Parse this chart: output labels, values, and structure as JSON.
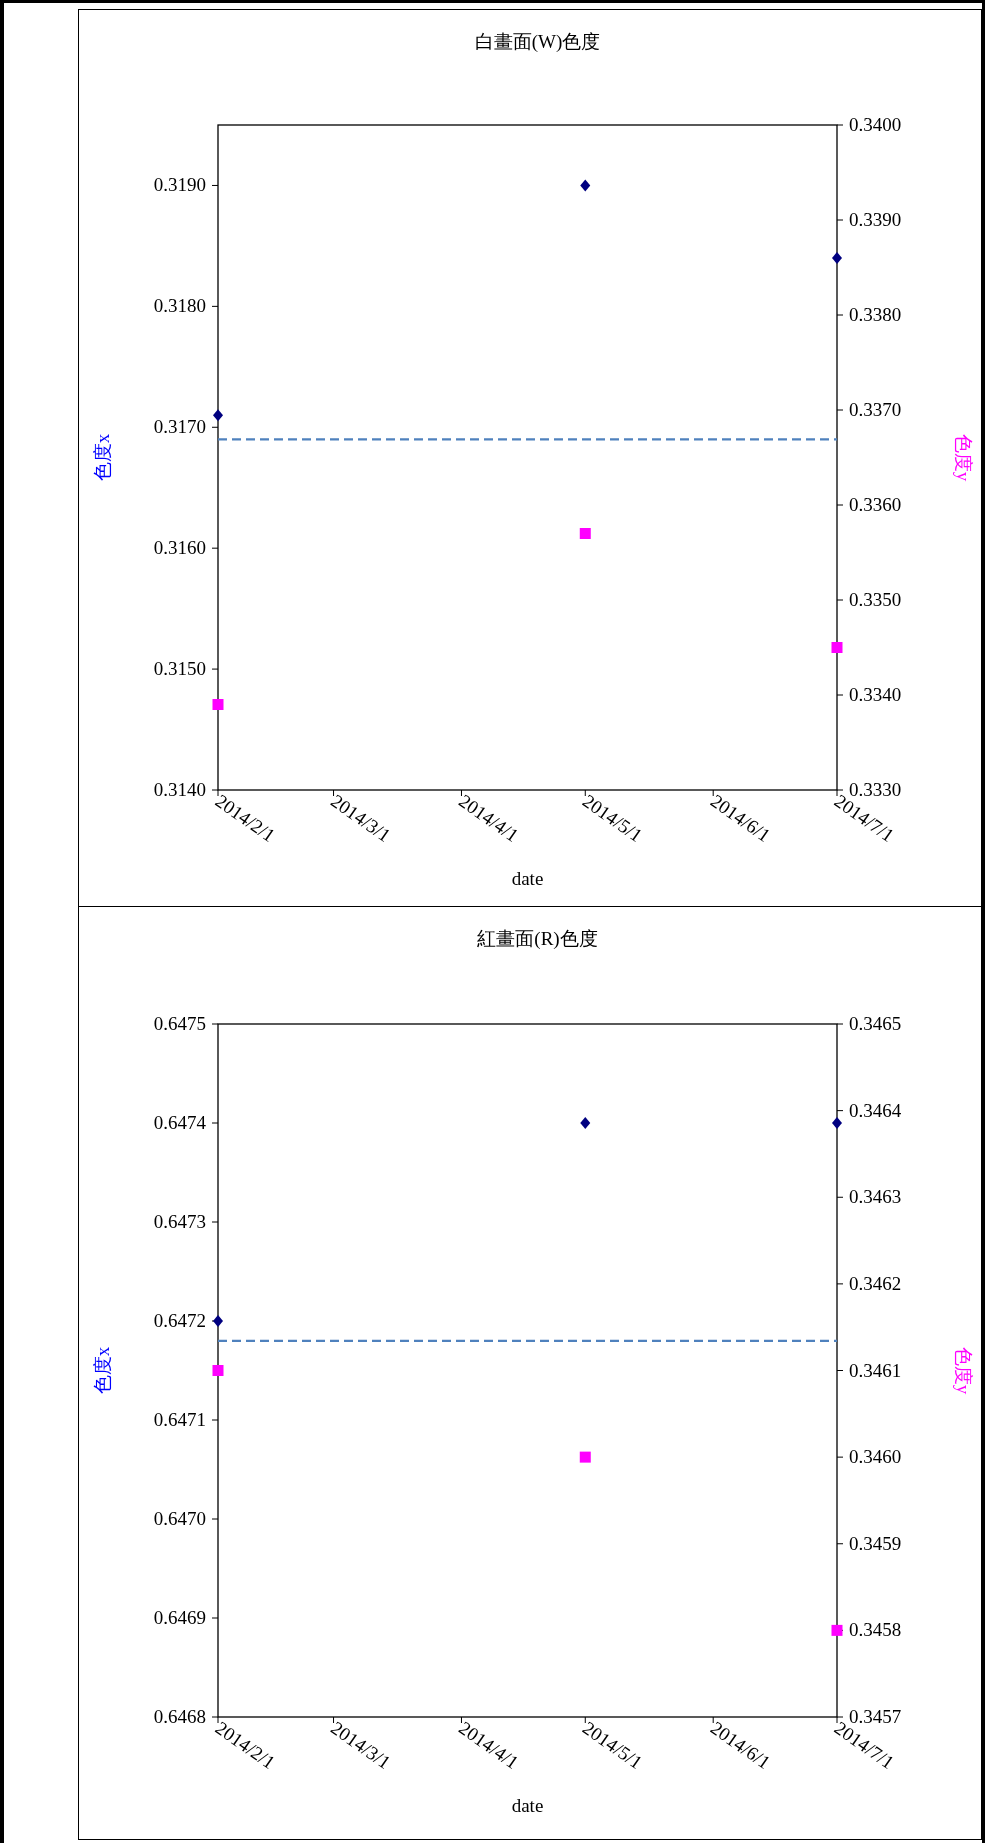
{
  "chart_data": [
    {
      "type": "scatter",
      "title": "白畫面(W)色度",
      "xlabel": "date",
      "ylabel": "色度x",
      "y2label": "色度y",
      "x": [
        "2014-02-01",
        "2014-05-01",
        "2014-07-01"
      ],
      "series": [
        {
          "color": "#000080",
          "marker": "diamond",
          "values": [
            0.3171,
            0.319,
            0.3184
          ]
        },
        {
          "color": "#ff00ff",
          "marker": "square",
          "axis": "y2",
          "values": [
            0.3339,
            0.3357,
            0.3345
          ]
        }
      ],
      "xlim": [
        "2014-02-01",
        "2014-07-01"
      ],
      "xticks": [
        {
          "value": "2014-02-01",
          "label": "2014/2/1"
        },
        {
          "value": "2014-03-01",
          "label": "2014/3/1"
        },
        {
          "value": "2014-04-01",
          "label": "2014/4/1"
        },
        {
          "value": "2014-05-01",
          "label": "2014/5/1"
        },
        {
          "value": "2014-06-01",
          "label": "2014/6/1"
        },
        {
          "value": "2014-07-01",
          "label": "2014/7/1"
        }
      ],
      "ylim": [
        0.314,
        0.3195
      ],
      "yticks": [
        {
          "value": 0.314,
          "label": "0.3140"
        },
        {
          "value": 0.315,
          "label": "0.3150"
        },
        {
          "value": 0.316,
          "label": "0.3160"
        },
        {
          "value": 0.317,
          "label": "0.3170"
        },
        {
          "value": 0.318,
          "label": "0.3180"
        },
        {
          "value": 0.319,
          "label": "0.3190"
        }
      ],
      "y2lim": [
        0.333,
        0.34
      ],
      "y2ticks": [
        {
          "value": 0.333,
          "label": "0.3330"
        },
        {
          "value": 0.334,
          "label": "0.3340"
        },
        {
          "value": 0.335,
          "label": "0.3350"
        },
        {
          "value": 0.336,
          "label": "0.3360"
        },
        {
          "value": 0.337,
          "label": "0.3370"
        },
        {
          "value": 0.338,
          "label": "0.3380"
        },
        {
          "value": 0.339,
          "label": "0.3390"
        },
        {
          "value": 0.34,
          "label": "0.3400"
        }
      ],
      "ref_lines": [
        {
          "axis": "y",
          "value": 0.3169,
          "color": "#4f81bd",
          "line_style": "dashed"
        }
      ]
    },
    {
      "type": "scatter",
      "title": "紅畫面(R)色度",
      "xlabel": "date",
      "ylabel": "色度x",
      "y2label": "色度y",
      "x": [
        "2014-02-01",
        "2014-05-01",
        "2014-07-01"
      ],
      "series": [
        {
          "color": "#000080",
          "marker": "diamond",
          "values": [
            0.6472,
            0.6474,
            0.6474
          ]
        },
        {
          "color": "#ff00ff",
          "marker": "square",
          "axis": "y2",
          "values": [
            0.3461,
            0.346,
            0.3458
          ]
        }
      ],
      "xlim": [
        "2014-02-01",
        "2014-07-01"
      ],
      "xticks": [
        {
          "value": "2014-02-01",
          "label": "2014/2/1"
        },
        {
          "value": "2014-03-01",
          "label": "2014/3/1"
        },
        {
          "value": "2014-04-01",
          "label": "2014/4/1"
        },
        {
          "value": "2014-05-01",
          "label": "2014/5/1"
        },
        {
          "value": "2014-06-01",
          "label": "2014/6/1"
        },
        {
          "value": "2014-07-01",
          "label": "2014/7/1"
        }
      ],
      "ylim": [
        0.6468,
        0.6475
      ],
      "yticks": [
        {
          "value": 0.6468,
          "label": "0.6468"
        },
        {
          "value": 0.6469,
          "label": "0.6469"
        },
        {
          "value": 0.647,
          "label": "0.6470"
        },
        {
          "value": 0.6471,
          "label": "0.6471"
        },
        {
          "value": 0.6472,
          "label": "0.6472"
        },
        {
          "value": 0.6473,
          "label": "0.6473"
        },
        {
          "value": 0.6474,
          "label": "0.6474"
        },
        {
          "value": 0.6475,
          "label": "0.6475"
        }
      ],
      "y2lim": [
        0.3457,
        0.3465
      ],
      "y2ticks": [
        {
          "value": 0.3457,
          "label": "0.3457"
        },
        {
          "value": 0.3458,
          "label": "0.3458"
        },
        {
          "value": 0.3459,
          "label": "0.3459"
        },
        {
          "value": 0.346,
          "label": "0.3460"
        },
        {
          "value": 0.3461,
          "label": "0.3461"
        },
        {
          "value": 0.3462,
          "label": "0.3462"
        },
        {
          "value": 0.3463,
          "label": "0.3463"
        },
        {
          "value": 0.3464,
          "label": "0.3464"
        },
        {
          "value": 0.3465,
          "label": "0.3465"
        }
      ],
      "ref_lines": [
        {
          "axis": "y",
          "value": 0.64718,
          "color": "#4f81bd",
          "line_style": "dashed"
        }
      ]
    }
  ]
}
